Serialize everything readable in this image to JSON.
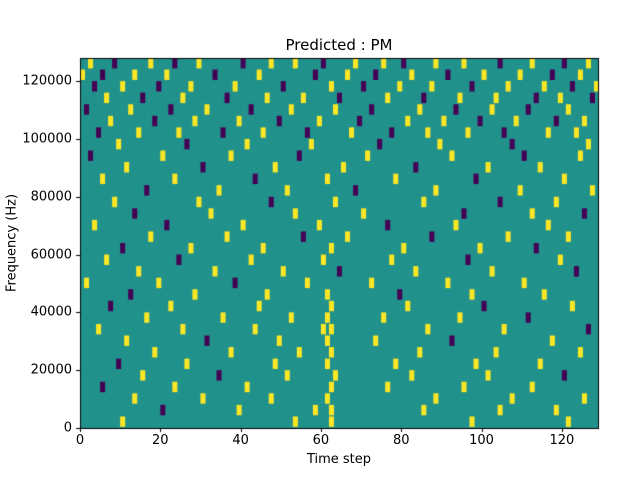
{
  "title": "Predicted : PM",
  "chart_data": {
    "type": "heatmap",
    "title": "Predicted : PM",
    "xlabel": "Time step",
    "ylabel": "Frequency (Hz)",
    "xlim": [
      0,
      129
    ],
    "ylim": [
      0,
      128000
    ],
    "x_ticks": [
      0,
      20,
      40,
      60,
      80,
      100,
      120
    ],
    "y_ticks": [
      0,
      20000,
      40000,
      60000,
      80000,
      100000,
      120000
    ],
    "n_time_steps": 129,
    "n_freq_bins": 32,
    "freq_bin_hz": 4000,
    "grid": false,
    "legend_position": "none",
    "colors": {
      "background": "#21918c",
      "class_1": "#fde725",
      "class_0": "#440154",
      "spine": "#000000"
    },
    "cells": [
      [
        2,
        31,
        1
      ],
      [
        8,
        31,
        0
      ],
      [
        17,
        31,
        1
      ],
      [
        23,
        31,
        0
      ],
      [
        29,
        31,
        1
      ],
      [
        40,
        31,
        0
      ],
      [
        47,
        31,
        1
      ],
      [
        53,
        31,
        1
      ],
      [
        60,
        31,
        0
      ],
      [
        68,
        31,
        1
      ],
      [
        75,
        31,
        1
      ],
      [
        80,
        31,
        0
      ],
      [
        88,
        31,
        1
      ],
      [
        95,
        31,
        1
      ],
      [
        104,
        31,
        0
      ],
      [
        112,
        31,
        1
      ],
      [
        120,
        31,
        0
      ],
      [
        126,
        31,
        1
      ],
      [
        0,
        30,
        1
      ],
      [
        5,
        30,
        0
      ],
      [
        13,
        30,
        1
      ],
      [
        21,
        30,
        1
      ],
      [
        33,
        30,
        0
      ],
      [
        44,
        30,
        1
      ],
      [
        58,
        30,
        0
      ],
      [
        66,
        30,
        1
      ],
      [
        73,
        30,
        0
      ],
      [
        82,
        30,
        1
      ],
      [
        91,
        30,
        0
      ],
      [
        100,
        30,
        1
      ],
      [
        109,
        30,
        1
      ],
      [
        117,
        30,
        0
      ],
      [
        124,
        30,
        1
      ],
      [
        3,
        29,
        0
      ],
      [
        10,
        29,
        1
      ],
      [
        19,
        29,
        0
      ],
      [
        27,
        29,
        1
      ],
      [
        38,
        29,
        1
      ],
      [
        50,
        29,
        0
      ],
      [
        62,
        29,
        1
      ],
      [
        70,
        29,
        0
      ],
      [
        79,
        29,
        1
      ],
      [
        87,
        29,
        1
      ],
      [
        97,
        29,
        0
      ],
      [
        106,
        29,
        1
      ],
      [
        115,
        29,
        1
      ],
      [
        122,
        29,
        0
      ],
      [
        128,
        29,
        1
      ],
      [
        6,
        28,
        1
      ],
      [
        15,
        28,
        0
      ],
      [
        25,
        28,
        1
      ],
      [
        36,
        28,
        0
      ],
      [
        46,
        28,
        1
      ],
      [
        55,
        28,
        1
      ],
      [
        64,
        28,
        0
      ],
      [
        76,
        28,
        1
      ],
      [
        85,
        28,
        0
      ],
      [
        94,
        28,
        1
      ],
      [
        103,
        28,
        1
      ],
      [
        113,
        28,
        0
      ],
      [
        119,
        28,
        1
      ],
      [
        127,
        28,
        0
      ],
      [
        1,
        27,
        0
      ],
      [
        12,
        27,
        1
      ],
      [
        22,
        27,
        0
      ],
      [
        31,
        27,
        1
      ],
      [
        42,
        27,
        0
      ],
      [
        52,
        27,
        1
      ],
      [
        63,
        27,
        1
      ],
      [
        72,
        27,
        0
      ],
      [
        84,
        27,
        1
      ],
      [
        93,
        27,
        0
      ],
      [
        102,
        27,
        1
      ],
      [
        111,
        27,
        0
      ],
      [
        121,
        27,
        1
      ],
      [
        7,
        26,
        1
      ],
      [
        18,
        26,
        0
      ],
      [
        28,
        26,
        1
      ],
      [
        39,
        26,
        1
      ],
      [
        49,
        26,
        0
      ],
      [
        59,
        26,
        1
      ],
      [
        69,
        26,
        0
      ],
      [
        81,
        26,
        1
      ],
      [
        90,
        26,
        1
      ],
      [
        99,
        26,
        0
      ],
      [
        108,
        26,
        1
      ],
      [
        118,
        26,
        0
      ],
      [
        125,
        26,
        1
      ],
      [
        4,
        25,
        0
      ],
      [
        14,
        25,
        1
      ],
      [
        24,
        25,
        1
      ],
      [
        35,
        25,
        0
      ],
      [
        45,
        25,
        1
      ],
      [
        56,
        25,
        0
      ],
      [
        67,
        25,
        1
      ],
      [
        77,
        25,
        0
      ],
      [
        86,
        25,
        1
      ],
      [
        96,
        25,
        1
      ],
      [
        105,
        25,
        0
      ],
      [
        116,
        25,
        1
      ],
      [
        123,
        25,
        1
      ],
      [
        9,
        24,
        1
      ],
      [
        26,
        24,
        0
      ],
      [
        41,
        24,
        1
      ],
      [
        57,
        24,
        1
      ],
      [
        74,
        24,
        0
      ],
      [
        89,
        24,
        1
      ],
      [
        107,
        24,
        0
      ],
      [
        126,
        24,
        1
      ],
      [
        2,
        23,
        0
      ],
      [
        20,
        23,
        1
      ],
      [
        37,
        23,
        1
      ],
      [
        54,
        23,
        0
      ],
      [
        71,
        23,
        1
      ],
      [
        92,
        23,
        1
      ],
      [
        110,
        23,
        0
      ],
      [
        124,
        23,
        1
      ],
      [
        11,
        22,
        1
      ],
      [
        30,
        22,
        0
      ],
      [
        48,
        22,
        1
      ],
      [
        65,
        22,
        1
      ],
      [
        83,
        22,
        0
      ],
      [
        101,
        22,
        1
      ],
      [
        114,
        22,
        1
      ],
      [
        5,
        21,
        1
      ],
      [
        23,
        21,
        1
      ],
      [
        43,
        21,
        0
      ],
      [
        61,
        21,
        1
      ],
      [
        78,
        21,
        1
      ],
      [
        98,
        21,
        0
      ],
      [
        120,
        21,
        1
      ],
      [
        16,
        20,
        0
      ],
      [
        34,
        20,
        1
      ],
      [
        51,
        20,
        1
      ],
      [
        68,
        20,
        0
      ],
      [
        88,
        20,
        1
      ],
      [
        109,
        20,
        1
      ],
      [
        127,
        20,
        1
      ],
      [
        8,
        19,
        1
      ],
      [
        29,
        19,
        1
      ],
      [
        47,
        19,
        0
      ],
      [
        63,
        19,
        1
      ],
      [
        85,
        19,
        1
      ],
      [
        104,
        19,
        0
      ],
      [
        118,
        19,
        1
      ],
      [
        13,
        18,
        0
      ],
      [
        32,
        18,
        1
      ],
      [
        53,
        18,
        1
      ],
      [
        70,
        18,
        1
      ],
      [
        95,
        18,
        0
      ],
      [
        112,
        18,
        1
      ],
      [
        125,
        18,
        0
      ],
      [
        3,
        17,
        1
      ],
      [
        21,
        17,
        0
      ],
      [
        40,
        17,
        1
      ],
      [
        59,
        17,
        1
      ],
      [
        76,
        17,
        0
      ],
      [
        93,
        17,
        1
      ],
      [
        116,
        17,
        1
      ],
      [
        17,
        16,
        1
      ],
      [
        36,
        16,
        1
      ],
      [
        55,
        16,
        0
      ],
      [
        66,
        16,
        1
      ],
      [
        87,
        16,
        0
      ],
      [
        106,
        16,
        1
      ],
      [
        121,
        16,
        1
      ],
      [
        10,
        15,
        0
      ],
      [
        27,
        15,
        1
      ],
      [
        45,
        15,
        1
      ],
      [
        62,
        15,
        1
      ],
      [
        80,
        15,
        1
      ],
      [
        99,
        15,
        1
      ],
      [
        113,
        15,
        0
      ],
      [
        6,
        14,
        1
      ],
      [
        24,
        14,
        0
      ],
      [
        42,
        14,
        1
      ],
      [
        60,
        14,
        1
      ],
      [
        77,
        14,
        1
      ],
      [
        96,
        14,
        0
      ],
      [
        119,
        14,
        1
      ],
      [
        14,
        13,
        1
      ],
      [
        33,
        13,
        1
      ],
      [
        50,
        13,
        1
      ],
      [
        64,
        13,
        0
      ],
      [
        83,
        13,
        1
      ],
      [
        102,
        13,
        1
      ],
      [
        123,
        13,
        0
      ],
      [
        1,
        12,
        1
      ],
      [
        19,
        12,
        1
      ],
      [
        38,
        12,
        0
      ],
      [
        56,
        12,
        1
      ],
      [
        72,
        12,
        1
      ],
      [
        91,
        12,
        1
      ],
      [
        110,
        12,
        1
      ],
      [
        12,
        11,
        0
      ],
      [
        28,
        11,
        1
      ],
      [
        46,
        11,
        1
      ],
      [
        61,
        11,
        1
      ],
      [
        79,
        11,
        0
      ],
      [
        97,
        11,
        1
      ],
      [
        115,
        11,
        1
      ],
      [
        7,
        10,
        0
      ],
      [
        22,
        10,
        1
      ],
      [
        44,
        10,
        1
      ],
      [
        62,
        10,
        1
      ],
      [
        81,
        10,
        1
      ],
      [
        100,
        10,
        0
      ],
      [
        122,
        10,
        1
      ],
      [
        16,
        9,
        1
      ],
      [
        35,
        9,
        1
      ],
      [
        52,
        9,
        1
      ],
      [
        61,
        9,
        1
      ],
      [
        75,
        9,
        1
      ],
      [
        94,
        9,
        1
      ],
      [
        111,
        9,
        0
      ],
      [
        4,
        8,
        1
      ],
      [
        25,
        8,
        1
      ],
      [
        43,
        8,
        1
      ],
      [
        60,
        8,
        1
      ],
      [
        62,
        8,
        1
      ],
      [
        86,
        8,
        1
      ],
      [
        105,
        8,
        1
      ],
      [
        126,
        8,
        0
      ],
      [
        11,
        7,
        1
      ],
      [
        31,
        7,
        0
      ],
      [
        49,
        7,
        1
      ],
      [
        61,
        7,
        1
      ],
      [
        73,
        7,
        1
      ],
      [
        92,
        7,
        0
      ],
      [
        117,
        7,
        1
      ],
      [
        18,
        6,
        1
      ],
      [
        37,
        6,
        1
      ],
      [
        54,
        6,
        1
      ],
      [
        62,
        6,
        1
      ],
      [
        84,
        6,
        1
      ],
      [
        103,
        6,
        1
      ],
      [
        124,
        6,
        1
      ],
      [
        9,
        5,
        0
      ],
      [
        26,
        5,
        1
      ],
      [
        48,
        5,
        1
      ],
      [
        61,
        5,
        1
      ],
      [
        78,
        5,
        1
      ],
      [
        98,
        5,
        1
      ],
      [
        114,
        5,
        1
      ],
      [
        15,
        4,
        1
      ],
      [
        34,
        4,
        0
      ],
      [
        51,
        4,
        1
      ],
      [
        63,
        4,
        1
      ],
      [
        82,
        4,
        1
      ],
      [
        101,
        4,
        1
      ],
      [
        120,
        4,
        0
      ],
      [
        5,
        3,
        0
      ],
      [
        23,
        3,
        1
      ],
      [
        41,
        3,
        1
      ],
      [
        62,
        3,
        1
      ],
      [
        76,
        3,
        1
      ],
      [
        95,
        3,
        1
      ],
      [
        112,
        3,
        1
      ],
      [
        13,
        2,
        1
      ],
      [
        30,
        2,
        1
      ],
      [
        47,
        2,
        1
      ],
      [
        61,
        2,
        1
      ],
      [
        88,
        2,
        1
      ],
      [
        107,
        2,
        1
      ],
      [
        125,
        2,
        1
      ],
      [
        20,
        1,
        0
      ],
      [
        39,
        1,
        1
      ],
      [
        58,
        1,
        1
      ],
      [
        62,
        1,
        1
      ],
      [
        85,
        1,
        1
      ],
      [
        104,
        1,
        1
      ],
      [
        118,
        1,
        1
      ],
      [
        10,
        0,
        1
      ],
      [
        53,
        0,
        1
      ],
      [
        62,
        0,
        1
      ],
      [
        97,
        0,
        1
      ],
      [
        121,
        0,
        1
      ]
    ]
  }
}
